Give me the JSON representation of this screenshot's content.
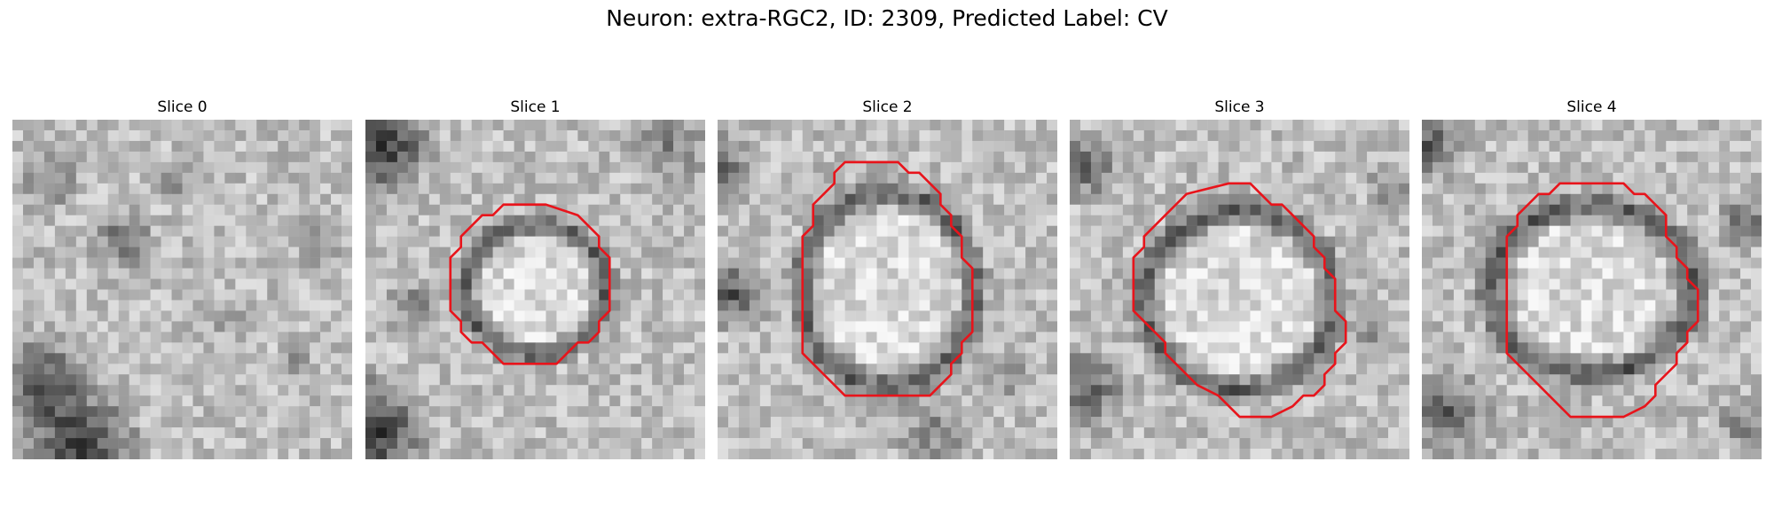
{
  "figure": {
    "title": "Neuron: extra-RGC2, ID: 2309, Predicted Label: CV"
  },
  "panels": [
    {
      "title": "Slice 0"
    },
    {
      "title": "Slice 1"
    },
    {
      "title": "Slice 2"
    },
    {
      "title": "Slice 3"
    },
    {
      "title": "Slice 4"
    }
  ],
  "colors": {
    "contour": "#e8141b",
    "background": "#ffffff"
  }
}
